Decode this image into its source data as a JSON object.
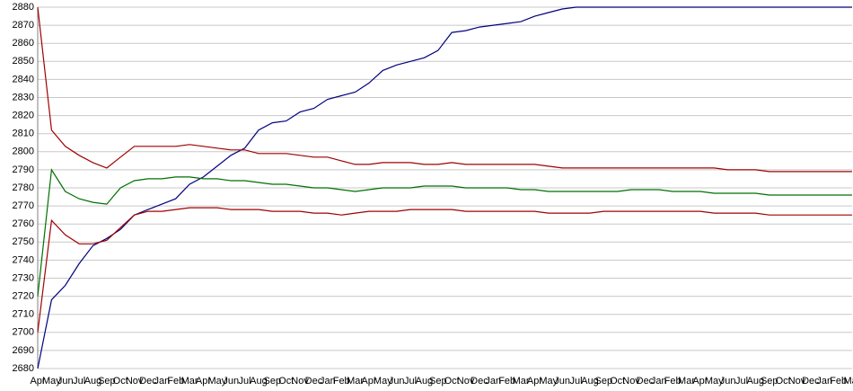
{
  "chart_data": {
    "type": "line",
    "categories": [
      "Apr",
      "May",
      "Jun",
      "Jul",
      "Aug",
      "Sep",
      "Oct",
      "Nov",
      "Dec",
      "Jan",
      "Feb",
      "Mar",
      "Apr",
      "May",
      "Jun",
      "Jul",
      "Aug",
      "Sep",
      "Oct",
      "Nov",
      "Dec",
      "Jan",
      "Feb",
      "Mar",
      "Apr",
      "May",
      "Jun",
      "Jul",
      "Aug",
      "Sep",
      "Oct",
      "Nov",
      "Dec",
      "Jan",
      "Feb",
      "Mar",
      "Apr",
      "May",
      "Jun",
      "Jul",
      "Aug",
      "Sep",
      "Oct",
      "Nov",
      "Dec",
      "Jan",
      "Feb",
      "Mar",
      "Apr",
      "May",
      "Jun",
      "Jul",
      "Aug",
      "Sep",
      "Oct",
      "Nov",
      "Dec",
      "Jan",
      "Feb",
      "Mar"
    ],
    "series": [
      {
        "color": "#000080",
        "values": [
          2680,
          2718,
          2726,
          2738,
          2748,
          2752,
          2757,
          2765,
          2768,
          2771,
          2774,
          2782,
          2786,
          2792,
          2798,
          2802,
          2812,
          2816,
          2817,
          2822,
          2824,
          2829,
          2831,
          2833,
          2838,
          2845,
          2848,
          2850,
          2852,
          2856,
          2866,
          2867,
          2869,
          2870,
          2871,
          2872,
          2875,
          2877,
          2879,
          2880,
          2880,
          2880,
          2880,
          2880,
          2880,
          2880,
          2880,
          2880,
          2880,
          2880,
          2880,
          2880,
          2880,
          2880,
          2880,
          2880,
          2880,
          2880,
          2880,
          2880
        ]
      },
      {
        "color": "#a00000",
        "values": [
          2880,
          2812,
          2803,
          2798,
          2794,
          2791,
          2797,
          2803,
          2803,
          2803,
          2803,
          2804,
          2803,
          2802,
          2801,
          2801,
          2799,
          2799,
          2799,
          2798,
          2797,
          2797,
          2795,
          2793,
          2793,
          2794,
          2794,
          2794,
          2793,
          2793,
          2794,
          2793,
          2793,
          2793,
          2793,
          2793,
          2793,
          2792,
          2791,
          2791,
          2791,
          2791,
          2791,
          2791,
          2791,
          2791,
          2791,
          2791,
          2791,
          2791,
          2790,
          2790,
          2790,
          2789,
          2789,
          2789,
          2789,
          2789,
          2789,
          2789
        ]
      },
      {
        "color": "#007000",
        "values": [
          2720,
          2790,
          2778,
          2774,
          2772,
          2771,
          2780,
          2784,
          2785,
          2785,
          2786,
          2786,
          2785,
          2785,
          2784,
          2784,
          2783,
          2782,
          2782,
          2781,
          2780,
          2780,
          2779,
          2778,
          2779,
          2780,
          2780,
          2780,
          2781,
          2781,
          2781,
          2780,
          2780,
          2780,
          2780,
          2779,
          2779,
          2778,
          2778,
          2778,
          2778,
          2778,
          2778,
          2779,
          2779,
          2779,
          2778,
          2778,
          2778,
          2777,
          2777,
          2777,
          2777,
          2776,
          2776,
          2776,
          2776,
          2776,
          2776,
          2776
        ]
      },
      {
        "color": "#a00000",
        "values": [
          2700,
          2762,
          2754,
          2749,
          2749,
          2751,
          2758,
          2765,
          2767,
          2767,
          2768,
          2769,
          2769,
          2769,
          2768,
          2768,
          2768,
          2767,
          2767,
          2767,
          2766,
          2766,
          2765,
          2766,
          2767,
          2767,
          2767,
          2768,
          2768,
          2768,
          2768,
          2767,
          2767,
          2767,
          2767,
          2767,
          2767,
          2766,
          2766,
          2766,
          2766,
          2767,
          2767,
          2767,
          2767,
          2767,
          2767,
          2767,
          2767,
          2766,
          2766,
          2766,
          2766,
          2765,
          2765,
          2765,
          2765,
          2765,
          2765,
          2765
        ]
      }
    ],
    "ylim": [
      2680,
      2880
    ],
    "yticks": [
      2680,
      2690,
      2700,
      2710,
      2720,
      2730,
      2740,
      2750,
      2760,
      2770,
      2780,
      2790,
      2800,
      2810,
      2820,
      2830,
      2840,
      2850,
      2860,
      2870,
      2880
    ],
    "grid": true
  }
}
